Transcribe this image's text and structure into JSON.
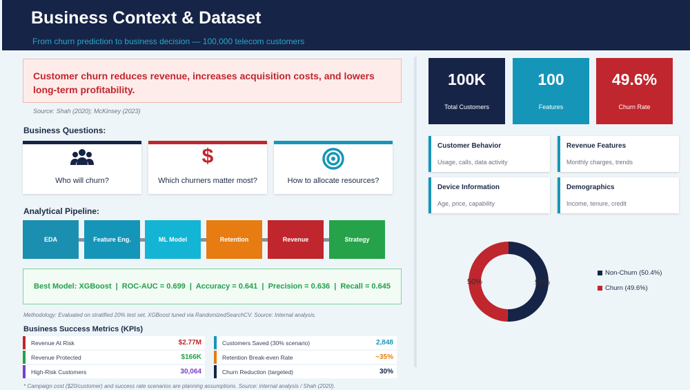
{
  "header": {
    "title": "Business Context & Dataset",
    "subtitle": "From churn prediction to business decision — 100,000 telecom customers"
  },
  "alert": {
    "text": "Customer churn reduces revenue, increases acquisition costs, and lowers long-term profitability.",
    "source": "Source: Shah (2020); McKinsey (2023)"
  },
  "business_questions": {
    "title": "Business Questions:",
    "items": [
      {
        "label": "Who will churn?",
        "icon": "users-icon",
        "color": "#162447"
      },
      {
        "label": "Which churners matter most?",
        "icon": "dollar-icon",
        "color": "#c0262d"
      },
      {
        "label": "How to allocate resources?",
        "icon": "target-icon",
        "color": "#1596b8"
      }
    ]
  },
  "pipeline": {
    "title": "Analytical Pipeline:",
    "steps": [
      {
        "label": "EDA",
        "color": "#1b8fb0"
      },
      {
        "label": "Feature Eng.",
        "color": "#1596b8"
      },
      {
        "label": "ML Model",
        "color": "#14b4d4"
      },
      {
        "label": "Retention",
        "color": "#e67c12"
      },
      {
        "label": "Revenue",
        "color": "#c0262d"
      },
      {
        "label": "Strategy",
        "color": "#25a24a"
      }
    ]
  },
  "best_model": {
    "text": "Best Model: XGBoost  |  ROC-AUC = 0.699  |  Accuracy = 0.641  |  Precision = 0.636  |  Recall = 0.645"
  },
  "methodology": "Methodology: Evaluated on stratified 20% test set. XGBoost tuned via RandomizedSearchCV.  Source: Internal analysis.",
  "kpis": {
    "title": "Business Success Metrics (KPIs)",
    "left": [
      {
        "label": "Revenue At Risk",
        "value": "$2.77M",
        "color": "#c0262d"
      },
      {
        "label": "Revenue Protected",
        "value": "$166K",
        "color": "#25a24a"
      },
      {
        "label": "High-Risk Customers",
        "value": "30,064",
        "color": "#7b3fc4"
      }
    ],
    "right": [
      {
        "label": "Customers Saved (30% scenario)",
        "value": "2,848",
        "color": "#1596b8"
      },
      {
        "label": "Retention Break-even Rate",
        "value": "~35%",
        "color": "#e67c12"
      },
      {
        "label": "Churn Reduction (targeted)",
        "value": "30%",
        "color": "#162447"
      }
    ],
    "footnote": "* Campaign cost ($20/customer) and success rate scenarios are planning assumptions.  Source: internal analysis / Shah (2020)."
  },
  "stats": [
    {
      "value": "100K",
      "label": "Total Customers",
      "color": "#162447"
    },
    {
      "value": "100",
      "label": "Features",
      "color": "#1596b8"
    },
    {
      "value": "49.6%",
      "label": "Churn Rate",
      "color": "#c0262d"
    }
  ],
  "features": [
    {
      "title": "Customer Behavior",
      "desc": "Usage, calls, data activity"
    },
    {
      "title": "Revenue Features",
      "desc": "Monthly charges, trends"
    },
    {
      "title": "Device Information",
      "desc": "Age, price, capability"
    },
    {
      "title": "Demographics",
      "desc": "Income, tenure, credit"
    }
  ],
  "chart_data": {
    "type": "pie",
    "donut": true,
    "categories": [
      "Non-Churn (50.4%)",
      "Churn (49.6%)"
    ],
    "values": [
      50.4,
      49.6
    ],
    "data_labels": [
      "50%",
      "50%"
    ],
    "colors": [
      "#162447",
      "#c0262d"
    ],
    "legend_position": "right"
  }
}
